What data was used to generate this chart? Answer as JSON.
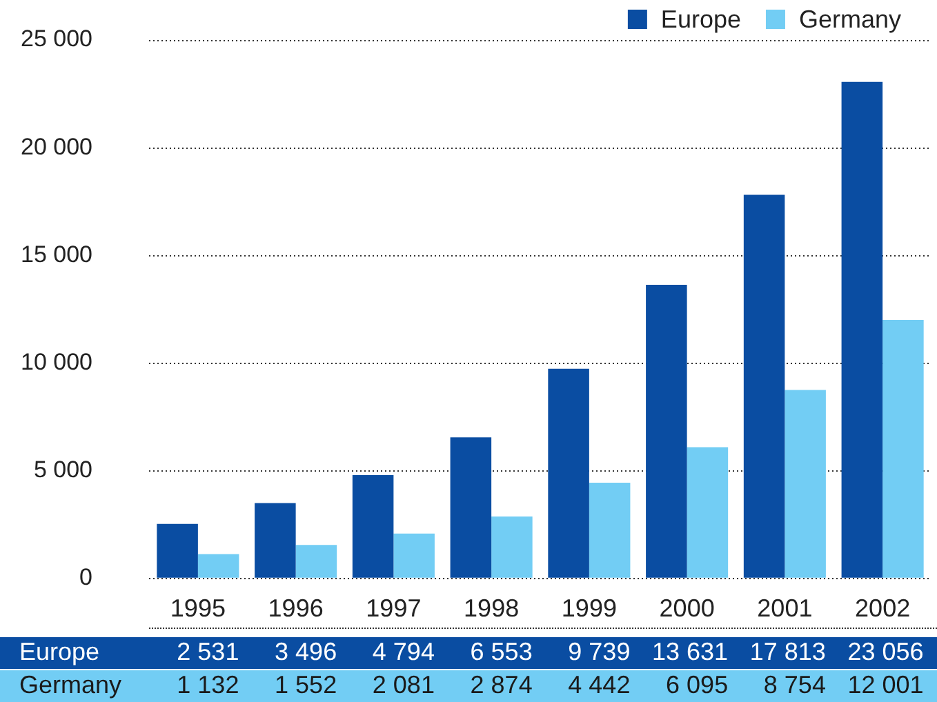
{
  "chart_data": {
    "type": "bar",
    "categories": [
      "1995",
      "1996",
      "1997",
      "1998",
      "1999",
      "2000",
      "2001",
      "2002"
    ],
    "series": [
      {
        "name": "Europe",
        "color": "#0a4da2",
        "values": [
          2531,
          3496,
          4794,
          6553,
          9739,
          13631,
          17813,
          23056
        ],
        "value_labels": [
          "2 531",
          "3 496",
          "4 794",
          "6 553",
          "9 739",
          "13 631",
          "17 813",
          "23 056"
        ]
      },
      {
        "name": "Germany",
        "color": "#72cdf4",
        "values": [
          1132,
          1552,
          2081,
          2874,
          4442,
          6095,
          8754,
          12001
        ],
        "value_labels": [
          "1 132",
          "1 552",
          "2 081",
          "2 874",
          "4 442",
          "6 095",
          "8 754",
          "12 001"
        ]
      }
    ],
    "ylim": [
      0,
      25000
    ],
    "yticks": [
      0,
      {
        "value": 5000,
        "label": "5 000"
      },
      {
        "value": 10000,
        "label": "10 000"
      },
      {
        "value": 15000,
        "label": "15 000"
      },
      {
        "value": 20000,
        "label": "20 000"
      },
      {
        "value": 25000,
        "label": "25 000"
      }
    ],
    "grid": "y",
    "legend": "top right"
  }
}
